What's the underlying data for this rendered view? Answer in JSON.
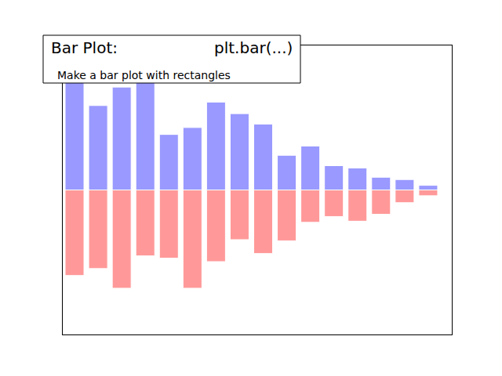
{
  "chart_data": {
    "type": "bar",
    "title": "Bar Plot:",
    "annotations": [
      "plt.bar(...)"
    ],
    "subtitle": "Make a bar plot with rectangles",
    "x": [
      0,
      1,
      2,
      3,
      4,
      5,
      6,
      7,
      8,
      9,
      10,
      11,
      12,
      13,
      14,
      15
    ],
    "series": [
      {
        "color": "#9999ff",
        "values": [
          0.97,
          0.73,
          0.89,
          0.95,
          0.48,
          0.54,
          0.76,
          0.66,
          0.57,
          0.3,
          0.38,
          0.21,
          0.19,
          0.11,
          0.09,
          0.04
        ]
      },
      {
        "color": "#ff9999",
        "values": [
          -0.74,
          -0.68,
          -0.85,
          -0.57,
          -0.59,
          -0.85,
          -0.62,
          -0.43,
          -0.55,
          -0.44,
          -0.28,
          -0.23,
          -0.27,
          -0.21,
          -0.11,
          -0.05
        ]
      }
    ],
    "xlim": [
      -0.5,
      16
    ],
    "ylim": [
      -1.25,
      1.25
    ],
    "grid": false,
    "tick_labels": false
  }
}
